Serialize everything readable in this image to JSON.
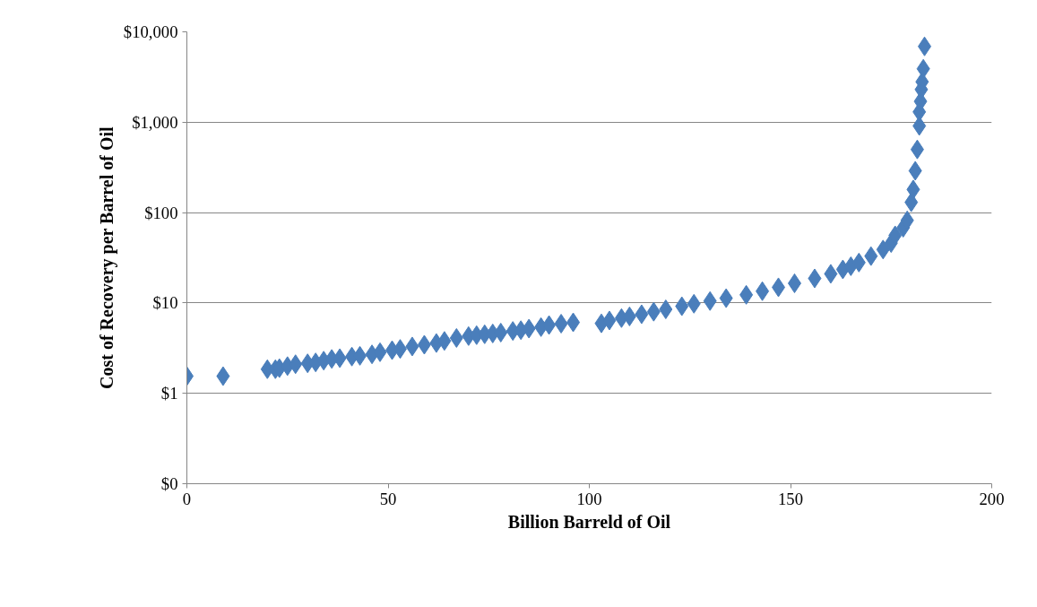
{
  "chart_data": {
    "type": "scatter",
    "xlabel": "Billion Barreld of Oil",
    "ylabel": "Cost of Recovery per Barrel of Oil",
    "log": "y",
    "grid": "y",
    "marker": "diamond",
    "xlim": [
      0,
      200
    ],
    "xticks": [
      0,
      50,
      100,
      150,
      200
    ],
    "ylim": [
      0.1,
      10000
    ],
    "yticks": [
      {
        "value": 0.1,
        "label": "$0"
      },
      {
        "value": 1,
        "label": "$1"
      },
      {
        "value": 10,
        "label": "$10"
      },
      {
        "value": 100,
        "label": "$100"
      },
      {
        "value": 1000,
        "label": "$1,000"
      },
      {
        "value": 10000,
        "label": "$10,000"
      }
    ],
    "series": [
      {
        "color": "#4a7ebb",
        "x": [
          0,
          9,
          20,
          22,
          23,
          25,
          27,
          30,
          32,
          34,
          36,
          38,
          41,
          43,
          46,
          48,
          51,
          53,
          56,
          59,
          62,
          64,
          67,
          70,
          72,
          74,
          76,
          78,
          81,
          83,
          85,
          88,
          90,
          93,
          96,
          103,
          105,
          108,
          110,
          113,
          116,
          119,
          123,
          126,
          130,
          134,
          139,
          143,
          147,
          151,
          156,
          160,
          163,
          165,
          167,
          170,
          173,
          175,
          176,
          178,
          179,
          180,
          180.5,
          181,
          181.5,
          182,
          182,
          182.3,
          182.5,
          182.7,
          183,
          183.3
        ],
        "values": [
          1.55,
          1.55,
          1.85,
          1.85,
          1.9,
          2.0,
          2.1,
          2.15,
          2.2,
          2.3,
          2.4,
          2.45,
          2.55,
          2.6,
          2.7,
          2.85,
          3.0,
          3.1,
          3.3,
          3.45,
          3.6,
          3.8,
          4.1,
          4.3,
          4.4,
          4.5,
          4.6,
          4.7,
          4.9,
          5.0,
          5.2,
          5.4,
          5.7,
          5.9,
          6.1,
          5.95,
          6.4,
          6.8,
          7.1,
          7.5,
          8.0,
          8.5,
          9.2,
          9.8,
          10.5,
          11.3,
          12.3,
          13.5,
          14.9,
          16.5,
          18.7,
          21,
          23.5,
          25.5,
          28,
          33,
          39,
          46,
          56,
          68,
          82,
          130,
          180,
          290,
          500,
          910,
          1300,
          1700,
          2300,
          2800,
          3900,
          6900
        ]
      }
    ]
  }
}
